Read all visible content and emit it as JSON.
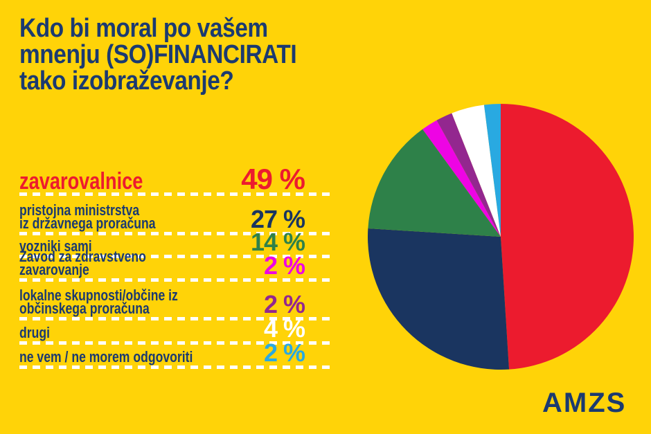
{
  "background": "#FFD308",
  "text_color": "#1B3A70",
  "title": {
    "text": "Kdo bi moral po vašem\nmnenju (SO)FINANCIRATI\ntako izobraževanje?"
  },
  "logo": {
    "text": "AMZS"
  },
  "chart_data": {
    "type": "pie",
    "title": "Kdo bi moral po vašem mnenju (SO)FINANCIRATI tako izobraževanje?",
    "categories": [
      "zavarovalnice",
      "pristojna ministrstva iz državnega proračuna",
      "vozniki sami",
      "Zavod za zdravstveno zavarovanje",
      "lokalne skupnosti/občine iz občinskega proračuna",
      "drugi",
      "ne vem / ne morem odgovoriti"
    ],
    "values": [
      49,
      27,
      14,
      2,
      2,
      4,
      2
    ],
    "unit": "%",
    "colors": [
      "#EC1B2E",
      "#1A3560",
      "#2E8149",
      "#EE04E4",
      "#93278F",
      "#FFFFFF",
      "#29A9E1"
    ],
    "start_angle_deg": 0,
    "direction": "clockwise",
    "legend_position": "left",
    "grid": false
  },
  "rows": [
    {
      "label": "zavarovalnice",
      "value": "49 %"
    },
    {
      "label": "pristojna ministrstva\niz državnega proračuna",
      "value": "27 %"
    },
    {
      "label": "vozniki sami",
      "value": "14 %"
    },
    {
      "label": "Zavod za zdravstveno zavarovanje",
      "value": "2 %"
    },
    {
      "label": "lokalne skupnosti/občine iz\nobčinskega proračuna",
      "value": "2 %"
    },
    {
      "label": "drugi",
      "value": "4 %"
    },
    {
      "label": "ne vem / ne morem odgovoriti",
      "value": "2 %"
    }
  ]
}
